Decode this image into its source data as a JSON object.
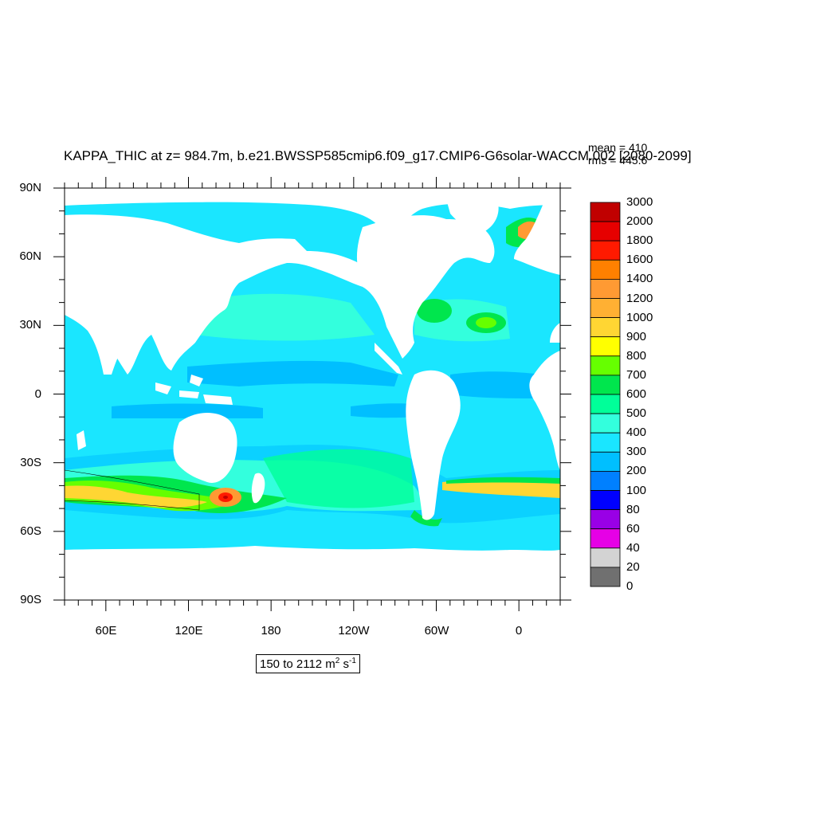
{
  "title": "KAPPA_THIC at z= 984.7m, b.e21.BWSSP585cmip6.f09_g17.CMIP6-G6solar-WACCM.002 [2080-2099]",
  "stats": {
    "mean": "mean = 410",
    "rms": "rms = 445.6"
  },
  "axes": {
    "y_labels": [
      "90N",
      "60N",
      "30N",
      "0",
      "30S",
      "60S",
      "90S"
    ],
    "x_labels": [
      "60E",
      "120E",
      "180",
      "120W",
      "60W",
      "0"
    ]
  },
  "colorbar": {
    "labels": [
      "3000",
      "2000",
      "1800",
      "1600",
      "1400",
      "1200",
      "1000",
      "900",
      "800",
      "700",
      "600",
      "500",
      "400",
      "300",
      "200",
      "100",
      "80",
      "60",
      "40",
      "20",
      "0"
    ],
    "colors": [
      "#c00000",
      "#e60000",
      "#ff1a00",
      "#ff8000",
      "#ff9a33",
      "#ffb033",
      "#ffd633",
      "#ffff00",
      "#66ff00",
      "#00e64d",
      "#00ff99",
      "#33ffdd",
      "#1ae6ff",
      "#00bfff",
      "#0080ff",
      "#0000ff",
      "#9900e6",
      "#e600e6",
      "#d3d3d3",
      "#707070"
    ]
  },
  "range": {
    "text": "150 to 2112 m",
    "sup1": "2",
    "unit2": " s",
    "sup2": "-1"
  }
}
